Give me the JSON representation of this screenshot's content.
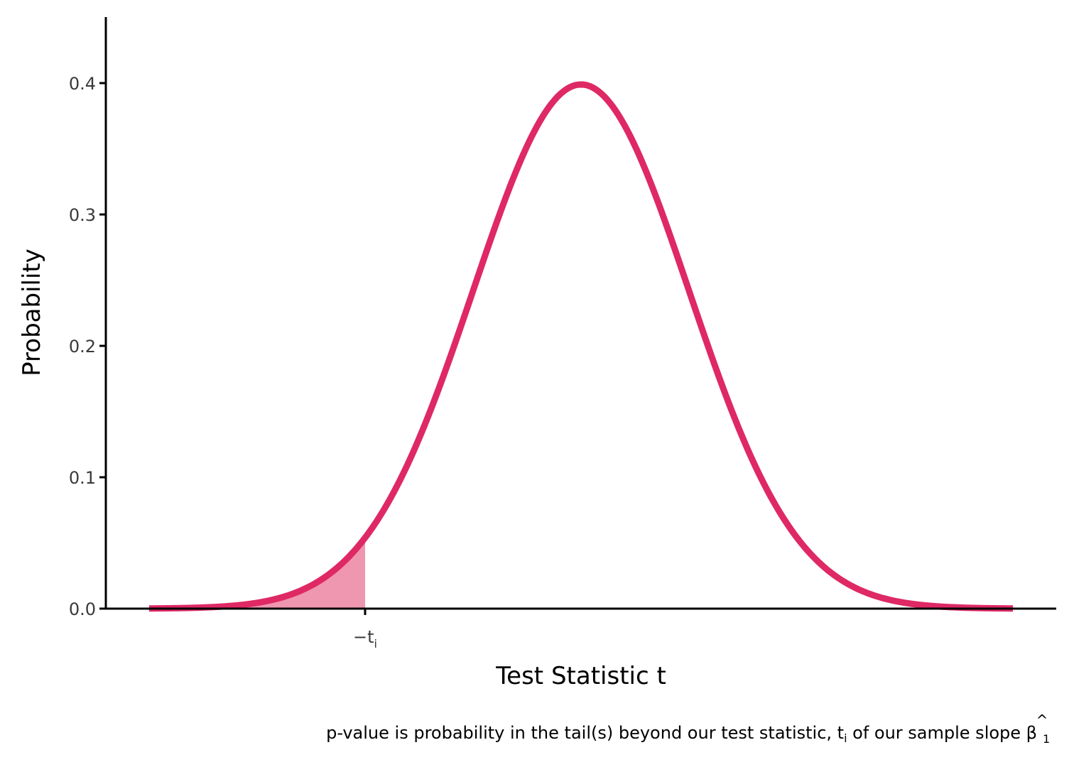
{
  "chart_data": {
    "type": "area",
    "title": "",
    "xlabel": "Test Statistic t",
    "ylabel": "Probability",
    "caption": {
      "prefix": "p-value is probability in the tail(s) beyond our test statistic, t",
      "prefix_sub": "i",
      "middle": " of our sample slope ",
      "beta": "β",
      "beta_hat": "^",
      "beta_sub": "1"
    },
    "xlim": [
      -4,
      4
    ],
    "ylim": [
      0,
      0.45
    ],
    "y_ticks": [
      {
        "value": 0.0,
        "label": "0.0"
      },
      {
        "value": 0.1,
        "label": "0.1"
      },
      {
        "value": 0.2,
        "label": "0.2"
      },
      {
        "value": 0.3,
        "label": "0.3"
      },
      {
        "value": 0.4,
        "label": "0.4"
      }
    ],
    "x_ticks": [
      {
        "value": -2,
        "label_main": "−t",
        "label_sub": "i"
      }
    ],
    "curve": {
      "distribution": "standard normal density",
      "x_min": -4,
      "x_max": 4,
      "color": "#de2965"
    },
    "shaded_tail": {
      "from": -4,
      "to": -2,
      "color": "#ef96b0"
    },
    "grid": false,
    "legend": "none",
    "colors": {
      "axis": "#000000",
      "tick_text": "#3a3a3a"
    }
  }
}
